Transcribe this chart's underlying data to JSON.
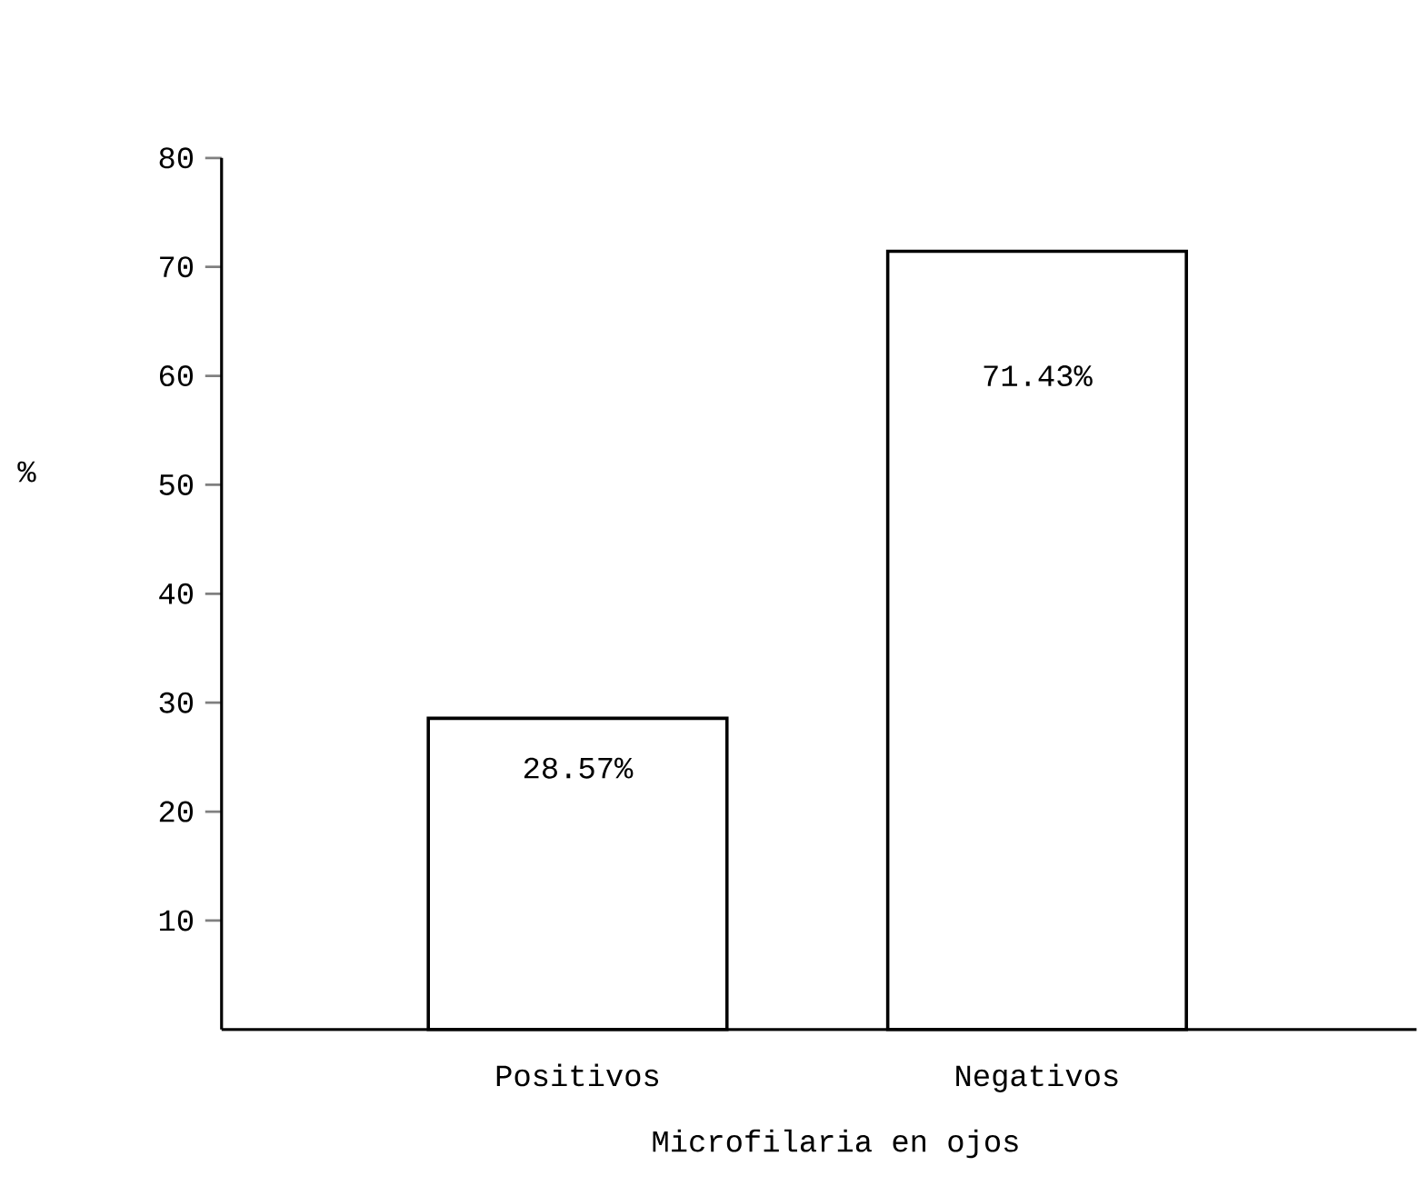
{
  "chart_data": {
    "type": "bar",
    "xlabel": "Microfilaria en ojos",
    "ylabel": "%",
    "categories": [
      "Positivos",
      "Negativos"
    ],
    "values": [
      28.57,
      71.43
    ],
    "value_labels": [
      "28.57%",
      "71.43%"
    ],
    "color": "#ffffff",
    "ylim": [
      0,
      80
    ],
    "yticks": [
      10,
      20,
      30,
      40,
      50,
      60,
      70,
      80
    ]
  }
}
